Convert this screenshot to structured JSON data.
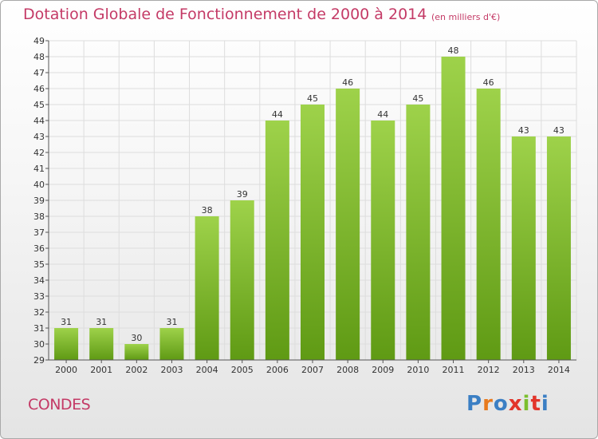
{
  "header": {
    "title": "Dotation Globale de Fonctionnement de 2000 à 2014",
    "unit": "(en milliers d'€)"
  },
  "footer": {
    "commune": "CONDES",
    "logo_text": "Proxiti"
  },
  "colors": {
    "title": "#c43a66",
    "bar_top": "#9ed24a",
    "bar_bottom": "#5f9a14",
    "grid": "#dddddd",
    "axis": "#555555"
  },
  "chart_data": {
    "type": "bar",
    "title": "Dotation Globale de Fonctionnement de 2000 à 2014",
    "subtitle": "(en milliers d'€)",
    "xlabel": "",
    "ylabel": "",
    "categories": [
      "2000",
      "2001",
      "2002",
      "2003",
      "2004",
      "2005",
      "2006",
      "2007",
      "2008",
      "2009",
      "2010",
      "2011",
      "2012",
      "2013",
      "2014"
    ],
    "values": [
      31,
      31,
      30,
      31,
      38,
      39,
      44,
      45,
      46,
      44,
      45,
      48,
      46,
      43,
      43
    ],
    "ylim": [
      29,
      49
    ],
    "yticks": [
      29,
      30,
      31,
      32,
      33,
      34,
      35,
      36,
      37,
      38,
      39,
      40,
      41,
      42,
      43,
      44,
      45,
      46,
      47,
      48,
      49
    ],
    "grid": true,
    "data_labels": true
  }
}
